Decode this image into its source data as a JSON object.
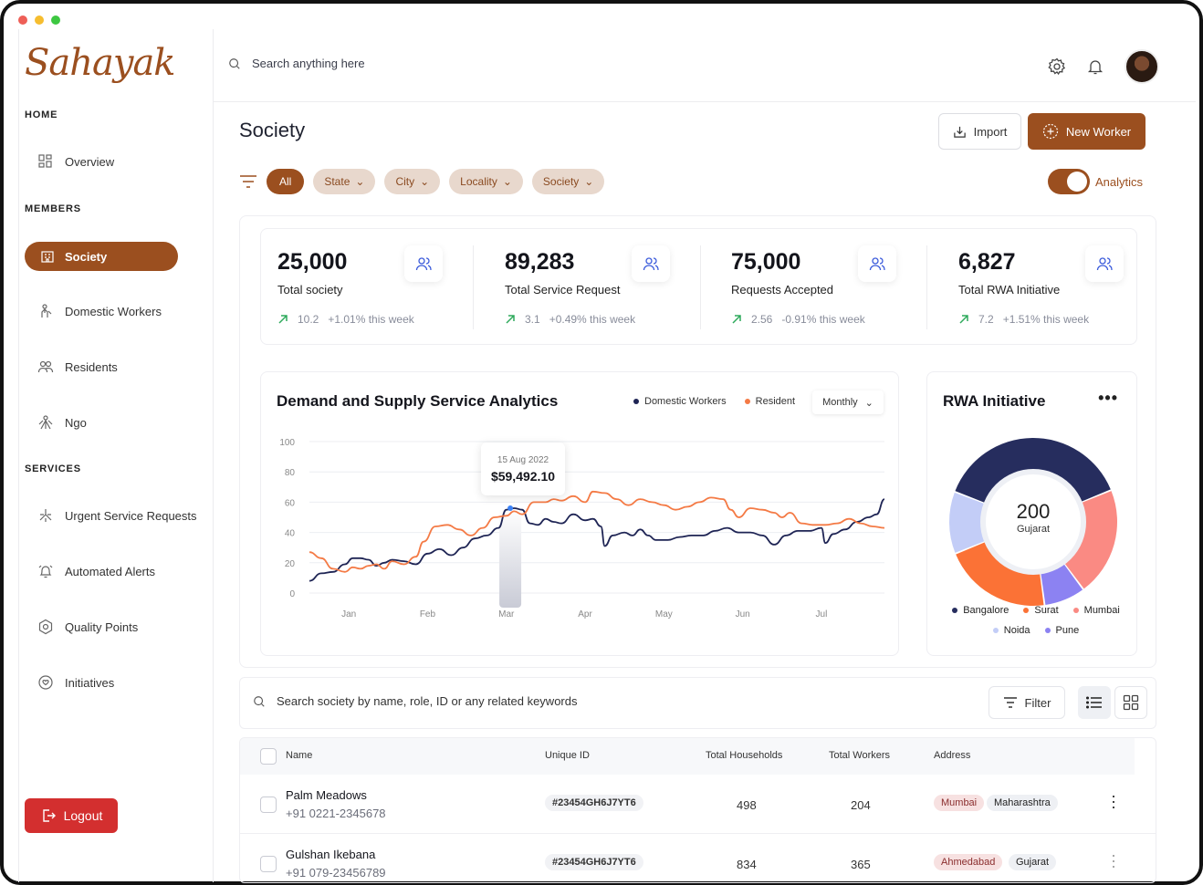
{
  "app": {
    "logo": "Sahayak"
  },
  "sidebar": {
    "sections": {
      "home": "HOME",
      "members": "MEMBERS",
      "services": "SERVICES"
    },
    "items": {
      "overview": "Overview",
      "society": "Society",
      "domestic_workers": "Domestic Workers",
      "residents": "Residents",
      "ngo": "Ngo",
      "urgent": "Urgent Service Requests",
      "alerts": "Automated Alerts",
      "quality": "Quality Points",
      "initiatives": "Initiatives"
    },
    "logout": "Logout"
  },
  "header": {
    "search_placeholder": "Search anything here"
  },
  "page": {
    "title": "Society",
    "import_label": "Import",
    "new_worker_label": "New Worker",
    "filters": [
      "All",
      "State",
      "City",
      "Locality",
      "Society"
    ],
    "analytics_toggle": "Analytics"
  },
  "stats": [
    {
      "value": "25,000",
      "label": "Total society",
      "delta": "10.2",
      "change": "+1.01% this week"
    },
    {
      "value": "89,283",
      "label": "Total Service Request",
      "delta": "3.1",
      "change": "+0.49% this week"
    },
    {
      "value": "75,000",
      "label": "Requests Accepted",
      "delta": "2.56",
      "change": "-0.91% this week"
    },
    {
      "value": "6,827",
      "label": "Total RWA Initiative",
      "delta": "7.2",
      "change": "+1.51% this week"
    }
  ],
  "analytics": {
    "title": "Demand and Supply Service  Analytics",
    "period": "Monthly",
    "tooltip": {
      "date": "15 Aug 2022",
      "value": "$59,492.10"
    }
  },
  "chart_data": {
    "type": "line",
    "title": "Demand and Supply Service  Analytics",
    "x_labels": [
      "Jan",
      "Feb",
      "Mar",
      "Apr",
      "May",
      "Jun",
      "Jul"
    ],
    "y_ticks": [
      0,
      20,
      40,
      60,
      80,
      100
    ],
    "ylim": [
      0,
      100
    ],
    "x_range": [
      0,
      7.3
    ],
    "series": [
      {
        "name": "Domestic Workers",
        "color": "#1e2454",
        "points": [
          [
            0,
            8
          ],
          [
            0.15,
            13
          ],
          [
            0.3,
            14
          ],
          [
            0.45,
            19
          ],
          [
            0.55,
            23
          ],
          [
            0.65,
            23
          ],
          [
            0.75,
            22
          ],
          [
            0.85,
            18
          ],
          [
            0.95,
            20
          ],
          [
            1.05,
            22
          ],
          [
            1.2,
            21
          ],
          [
            1.35,
            19
          ],
          [
            1.5,
            26
          ],
          [
            1.65,
            29
          ],
          [
            1.8,
            25
          ],
          [
            1.95,
            30
          ],
          [
            2.1,
            36
          ],
          [
            2.25,
            38
          ],
          [
            2.4,
            43
          ],
          [
            2.5,
            55
          ],
          [
            2.6,
            56
          ],
          [
            2.7,
            55
          ],
          [
            2.8,
            46
          ],
          [
            2.9,
            45
          ],
          [
            3.0,
            49
          ],
          [
            3.1,
            47
          ],
          [
            3.2,
            46
          ],
          [
            3.35,
            52
          ],
          [
            3.5,
            48
          ],
          [
            3.6,
            49
          ],
          [
            3.7,
            44
          ],
          [
            3.75,
            31
          ],
          [
            3.85,
            38
          ],
          [
            4.0,
            40
          ],
          [
            4.1,
            38
          ],
          [
            4.2,
            42
          ],
          [
            4.3,
            38
          ],
          [
            4.4,
            35
          ],
          [
            4.55,
            35
          ],
          [
            4.7,
            37
          ],
          [
            4.85,
            38
          ],
          [
            5.0,
            38
          ],
          [
            5.15,
            41
          ],
          [
            5.3,
            43
          ],
          [
            5.45,
            40
          ],
          [
            5.6,
            40
          ],
          [
            5.75,
            38
          ],
          [
            5.9,
            32
          ],
          [
            6.05,
            38
          ],
          [
            6.2,
            41
          ],
          [
            6.35,
            41
          ],
          [
            6.5,
            43
          ],
          [
            6.55,
            33
          ],
          [
            6.65,
            39
          ],
          [
            6.8,
            42
          ],
          [
            6.95,
            47
          ],
          [
            7.1,
            50
          ],
          [
            7.2,
            52
          ],
          [
            7.3,
            62
          ]
        ]
      },
      {
        "name": "Resident",
        "color": "#f47a45",
        "points": [
          [
            0,
            27
          ],
          [
            0.15,
            23
          ],
          [
            0.3,
            16
          ],
          [
            0.45,
            14
          ],
          [
            0.55,
            17
          ],
          [
            0.65,
            16
          ],
          [
            0.75,
            18
          ],
          [
            0.85,
            19
          ],
          [
            0.95,
            16
          ],
          [
            1.05,
            21
          ],
          [
            1.2,
            19
          ],
          [
            1.35,
            24
          ],
          [
            1.45,
            34
          ],
          [
            1.6,
            44
          ],
          [
            1.75,
            45
          ],
          [
            1.9,
            42
          ],
          [
            2.05,
            38
          ],
          [
            2.2,
            43
          ],
          [
            2.35,
            50
          ],
          [
            2.5,
            51
          ],
          [
            2.6,
            54
          ],
          [
            2.7,
            52
          ],
          [
            2.85,
            60
          ],
          [
            3.0,
            60
          ],
          [
            3.1,
            62
          ],
          [
            3.2,
            61
          ],
          [
            3.35,
            64
          ],
          [
            3.5,
            60
          ],
          [
            3.6,
            67
          ],
          [
            3.75,
            66
          ],
          [
            3.9,
            62
          ],
          [
            4.05,
            58
          ],
          [
            4.2,
            62
          ],
          [
            4.35,
            60
          ],
          [
            4.5,
            58
          ],
          [
            4.65,
            55
          ],
          [
            4.8,
            57
          ],
          [
            4.95,
            60
          ],
          [
            5.1,
            63
          ],
          [
            5.25,
            62
          ],
          [
            5.35,
            55
          ],
          [
            5.45,
            50
          ],
          [
            5.6,
            56
          ],
          [
            5.75,
            55
          ],
          [
            5.9,
            53
          ],
          [
            6.0,
            50
          ],
          [
            6.1,
            53
          ],
          [
            6.25,
            46
          ],
          [
            6.4,
            45
          ],
          [
            6.55,
            45
          ],
          [
            6.7,
            46
          ],
          [
            6.85,
            49
          ],
          [
            7.0,
            46
          ],
          [
            7.15,
            44
          ],
          [
            7.3,
            43
          ]
        ]
      }
    ],
    "highlight": {
      "x": 2.55,
      "label": "15 Aug 2022",
      "value": "$59,492.10"
    }
  },
  "rwa": {
    "title": "RWA Initiative",
    "more": "•••",
    "center_value": "200",
    "center_label": "Gujarat",
    "segments": [
      {
        "name": "Bangalore",
        "value": 38,
        "color": "#262d5e"
      },
      {
        "name": "Mumbai",
        "value": 21,
        "color": "#fa8a83"
      },
      {
        "name": "Pune",
        "value": 8,
        "color": "#8c82f2"
      },
      {
        "name": "Surat",
        "value": 21,
        "color": "#fb7236"
      },
      {
        "name": "Noida",
        "value": 12,
        "color": "#c3cdf7"
      }
    ],
    "legend": [
      "Bangalore",
      "Surat",
      "Mumbai",
      "Noida",
      "Pune"
    ]
  },
  "table": {
    "search_placeholder": "Search society by name, role, ID or any related keywords",
    "filter_label": "Filter",
    "columns": [
      "Name",
      "Unique ID",
      "Total Households",
      "Total Workers",
      "Address"
    ],
    "rows": [
      {
        "name": "Palm Meadows",
        "phone": "+91 0221-2345678",
        "uid": "#23454GH6J7YT6",
        "households": "498",
        "workers": "204",
        "city": "Mumbai",
        "state": "Maharashtra"
      },
      {
        "name": "Gulshan Ikebana",
        "phone": "+91 079-23456789",
        "uid": "#23454GH6J7YT6",
        "households": "834",
        "workers": "365",
        "city": "Ahmedabad",
        "state": "Gujarat"
      }
    ]
  },
  "colors": {
    "brand": "#9b4f1f",
    "logout": "#d32f2f",
    "trend_up": "#2eaa5c"
  }
}
